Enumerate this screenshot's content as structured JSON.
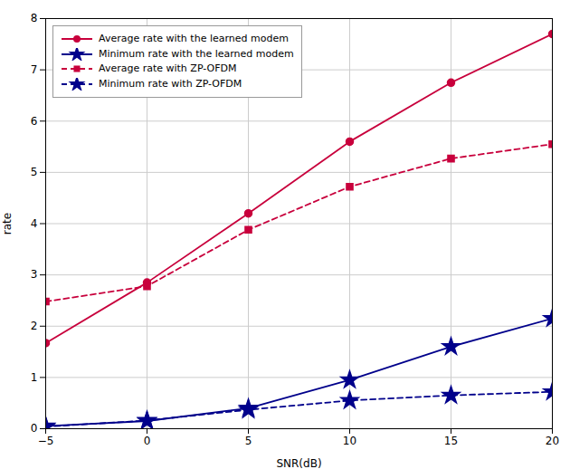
{
  "chart_data": {
    "type": "line",
    "xlabel": "SNR(dB)",
    "ylabel": "rate",
    "x": [
      -5,
      0,
      5,
      10,
      15,
      20
    ],
    "series": [
      {
        "name": "Average rate with the learned modem",
        "color": "#C8003C",
        "marker": "circle",
        "line_style": "solid",
        "values": [
          1.67,
          2.85,
          4.2,
          5.6,
          6.75,
          7.7
        ]
      },
      {
        "name": "Minimum rate with the learned modem",
        "color": "#00008B",
        "marker": "star",
        "line_style": "solid",
        "values": [
          0.05,
          0.15,
          0.4,
          0.95,
          1.6,
          2.15
        ]
      },
      {
        "name": "Average rate with ZP-OFDM",
        "color": "#C8003C",
        "marker": "square",
        "line_style": "dashed",
        "values": [
          2.48,
          2.78,
          3.88,
          4.72,
          5.27,
          5.55
        ]
      },
      {
        "name": "Minimum rate with ZP-OFDM",
        "color": "#00008B",
        "marker": "star",
        "line_style": "dashed",
        "values": [
          0.04,
          0.16,
          0.37,
          0.55,
          0.65,
          0.72
        ]
      }
    ],
    "xlim": [
      -5,
      20
    ],
    "ylim": [
      0,
      8
    ],
    "xticks": [
      -5,
      0,
      5,
      10,
      15,
      20
    ],
    "yticks": [
      0,
      1,
      2,
      3,
      4,
      5,
      6,
      7,
      8
    ],
    "grid": true,
    "legend": "upper left"
  }
}
